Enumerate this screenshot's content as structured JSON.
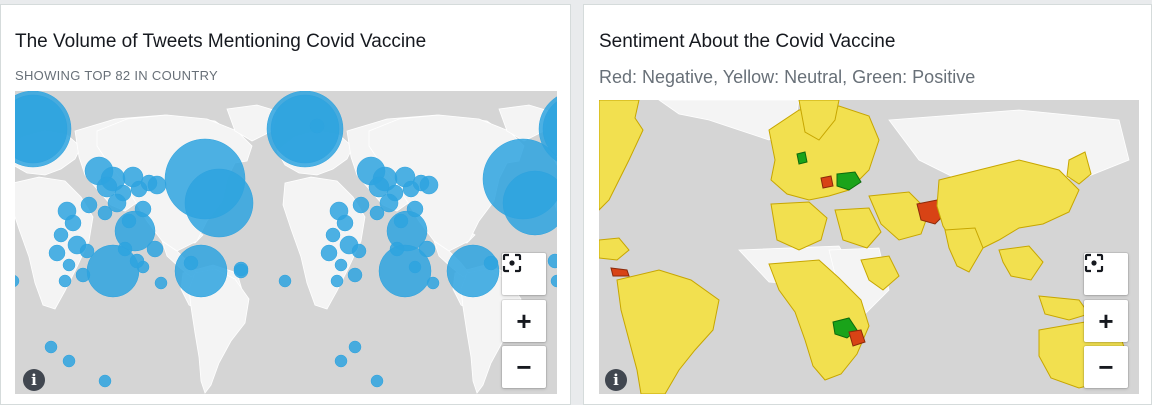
{
  "left_panel": {
    "title": "The Volume of Tweets Mentioning Covid Vaccine",
    "subtitle": "SHOWING TOP 82 IN COUNTRY",
    "bubble_color": "#2ea3df"
  },
  "right_panel": {
    "title": "Sentiment About the Covid Vaccine",
    "subtitle": "Red: Negative, Yellow: Neutral, Green: Positive",
    "colors": {
      "negative": "#d84315",
      "neutral": "#f2e04f",
      "positive": "#1aa31a"
    }
  },
  "map_controls": {
    "recenter": "recenter-icon",
    "zoom_in": "+",
    "zoom_out": "−",
    "info": "i"
  },
  "colors": {
    "ocean": "#d5d5d5",
    "land": "#f4f4f4",
    "panel_bg": "#ffffff",
    "text": "#16191f",
    "muted": "#687078"
  }
}
